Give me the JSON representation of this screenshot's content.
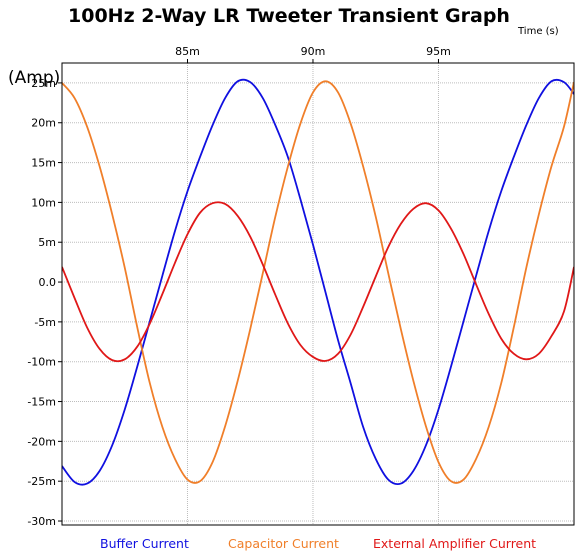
{
  "chart_data": {
    "type": "line",
    "title": "100Hz 2-Way LR Tweeter Transient Graph",
    "xlabel": "Time (s)",
    "x_unit_label": "Time   (s)",
    "ylabel": "(Amp)",
    "x_range": [
      0.08,
      0.1004
    ],
    "y_range": [
      -0.0305,
      0.0275
    ],
    "x_ticks": [
      {
        "value": 0.085,
        "label": "85m"
      },
      {
        "value": 0.09,
        "label": "90m"
      },
      {
        "value": 0.095,
        "label": "95m"
      }
    ],
    "y_ticks": [
      {
        "value": 0.025,
        "label": "25m"
      },
      {
        "value": 0.02,
        "label": "20m"
      },
      {
        "value": 0.015,
        "label": "15m"
      },
      {
        "value": 0.01,
        "label": "10m"
      },
      {
        "value": 0.005,
        "label": "5m"
      },
      {
        "value": 0.0,
        "label": "0.0"
      },
      {
        "value": -0.005,
        "label": "-5m"
      },
      {
        "value": -0.01,
        "label": "-10m"
      },
      {
        "value": -0.015,
        "label": "-15m"
      },
      {
        "value": -0.02,
        "label": "-20m"
      },
      {
        "value": -0.025,
        "label": "-25m"
      },
      {
        "value": -0.03,
        "label": "-30m"
      }
    ],
    "x_axis_position": "top",
    "grid": true,
    "legend_position": "bottom",
    "series": [
      {
        "name": "Buffer Current",
        "color": "#1010e0",
        "x": [
          0.08,
          0.0805,
          0.081,
          0.0815,
          0.082,
          0.0825,
          0.083,
          0.0835,
          0.084,
          0.0845,
          0.085,
          0.0855,
          0.086,
          0.0865,
          0.087,
          0.0875,
          0.088,
          0.0885,
          0.089,
          0.0895,
          0.09,
          0.0905,
          0.091,
          0.0915,
          0.092,
          0.0925,
          0.093,
          0.0935,
          0.094,
          0.0945,
          0.095,
          0.0955,
          0.096,
          0.0965,
          0.097,
          0.0975,
          0.098,
          0.0985,
          0.099,
          0.0995,
          0.1,
          0.1004
        ],
        "y": [
          -0.0231,
          -0.0251,
          -0.0253,
          -0.0237,
          -0.0205,
          -0.016,
          -0.0106,
          -0.0049,
          0.0008,
          0.0064,
          0.0114,
          0.0157,
          0.0197,
          0.0231,
          0.0252,
          0.0251,
          0.0231,
          0.0197,
          0.0157,
          0.0104,
          0.0047,
          -0.0013,
          -0.0073,
          -0.0127,
          -0.0182,
          -0.0222,
          -0.0248,
          -0.0253,
          -0.0237,
          -0.0205,
          -0.016,
          -0.0106,
          -0.0049,
          0.0008,
          0.0064,
          0.0114,
          0.0157,
          0.0197,
          0.0231,
          0.0252,
          0.0251,
          0.0236
        ]
      },
      {
        "name": "Capacitor Current",
        "color": "#f07f2a",
        "x": [
          0.08,
          0.0805,
          0.081,
          0.0815,
          0.082,
          0.0825,
          0.083,
          0.0835,
          0.084,
          0.0845,
          0.085,
          0.0855,
          0.086,
          0.0865,
          0.087,
          0.0875,
          0.088,
          0.0885,
          0.089,
          0.0895,
          0.09,
          0.0905,
          0.091,
          0.0915,
          0.092,
          0.0925,
          0.093,
          0.0935,
          0.094,
          0.0945,
          0.095,
          0.0955,
          0.096,
          0.0965,
          0.097,
          0.0975,
          0.098,
          0.0985,
          0.099,
          0.0995,
          0.1,
          0.1004
        ],
        "y": [
          0.025,
          0.0231,
          0.0195,
          0.0145,
          0.0085,
          0.0018,
          -0.0057,
          -0.0127,
          -0.0182,
          -0.0222,
          -0.0248,
          -0.025,
          -0.0226,
          -0.0181,
          -0.0124,
          -0.0059,
          0.0011,
          0.0082,
          0.0145,
          0.0199,
          0.0238,
          0.0252,
          0.0238,
          0.0199,
          0.0145,
          0.0082,
          0.0011,
          -0.0059,
          -0.0124,
          -0.0181,
          -0.0226,
          -0.025,
          -0.0248,
          -0.0222,
          -0.0182,
          -0.0127,
          -0.0057,
          0.0018,
          0.0085,
          0.0145,
          0.0195,
          0.0251
        ]
      },
      {
        "name": "External Amplifier Current",
        "color": "#e01818",
        "x": [
          0.08,
          0.0805,
          0.081,
          0.0815,
          0.082,
          0.0825,
          0.083,
          0.0835,
          0.084,
          0.0845,
          0.085,
          0.0855,
          0.086,
          0.0865,
          0.087,
          0.0875,
          0.088,
          0.0885,
          0.089,
          0.0895,
          0.09,
          0.0905,
          0.091,
          0.0915,
          0.092,
          0.0925,
          0.093,
          0.0935,
          0.094,
          0.0945,
          0.095,
          0.0955,
          0.096,
          0.0965,
          0.097,
          0.0975,
          0.098,
          0.0985,
          0.099,
          0.0995,
          0.1,
          0.1004
        ],
        "y": [
          0.0019,
          -0.002,
          -0.0057,
          -0.0084,
          -0.0098,
          -0.0097,
          -0.0081,
          -0.0052,
          -0.0015,
          0.0024,
          0.006,
          0.0087,
          0.0099,
          0.0098,
          0.0083,
          0.0057,
          0.0022,
          -0.0016,
          -0.0052,
          -0.0079,
          -0.0094,
          -0.0099,
          -0.009,
          -0.0066,
          -0.0031,
          0.0007,
          0.0044,
          0.0073,
          0.0092,
          0.0099,
          0.009,
          0.0067,
          0.0035,
          -0.0003,
          -0.004,
          -0.0071,
          -0.009,
          -0.0097,
          -0.009,
          -0.0068,
          -0.0037,
          0.0019
        ]
      }
    ]
  }
}
